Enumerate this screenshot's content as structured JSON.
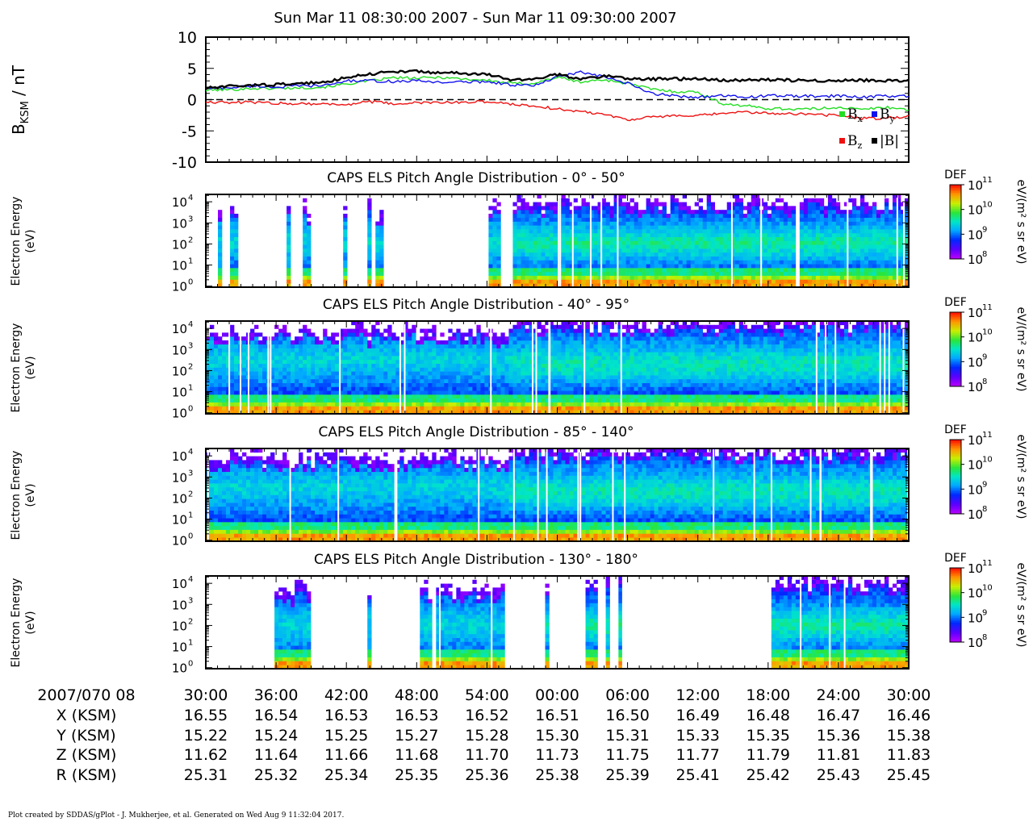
{
  "title": "Sun Mar 11 08:30:00 2007 - Sun Mar 11 09:30:00 2007",
  "footer": "Plot created by SDDAS/gPlot - J. Mukherjee, et al.  Generated on Wed Aug 9 11:32:04 2017.",
  "colors": {
    "bx": "#22dd22",
    "by": "#1111ee",
    "bz": "#ee1111",
    "b_total": "#000000"
  },
  "chart_data": [
    {
      "type": "line",
      "title": "",
      "ylabel": "B",
      "ylabel_sub": "KSM",
      "ylabel_unit": "/ nT",
      "ylim": [
        -10,
        10
      ],
      "yticks": [
        10,
        5,
        0,
        -5,
        -10
      ],
      "zero_line": "dashed",
      "legend": {
        "placement": "bottom-right",
        "entries": [
          {
            "name": "B",
            "sub": "x",
            "color": "#22dd22"
          },
          {
            "name": "B",
            "sub": "y",
            "color": "#1111ee"
          },
          {
            "name": "B",
            "sub": "z",
            "color": "#ee1111"
          },
          {
            "name": "|B|",
            "sub": "",
            "color": "#000000"
          }
        ]
      },
      "x_minutes": [
        0,
        2,
        4,
        6,
        8,
        10,
        12,
        14,
        16,
        18,
        20,
        22,
        24,
        26,
        28,
        30,
        32,
        34,
        36,
        38,
        40,
        42,
        44,
        46,
        48,
        50,
        52,
        54,
        56,
        58,
        60
      ],
      "series": [
        {
          "key": "bx",
          "values": [
            1.5,
            1.6,
            1.8,
            1.8,
            1.9,
            2.0,
            2.5,
            3.0,
            3.5,
            3.4,
            3.6,
            3.3,
            3.1,
            2.6,
            2.6,
            3.6,
            2.8,
            3.2,
            2.6,
            1.7,
            1.3,
            1.2,
            -0.6,
            -1.0,
            -1.4,
            -1.5,
            -1.5,
            -1.2,
            -1.6,
            -1.2,
            -1.6
          ]
        },
        {
          "key": "by",
          "values": [
            1.8,
            1.9,
            2.2,
            2.0,
            2.2,
            2.2,
            3.0,
            3.0,
            2.9,
            3.0,
            2.8,
            2.8,
            2.9,
            2.4,
            2.2,
            3.6,
            4.4,
            3.6,
            2.6,
            1.0,
            0.6,
            0.4,
            0.6,
            0.4,
            0.6,
            0.6,
            0.5,
            0.6,
            0.4,
            0.6,
            0.5
          ]
        },
        {
          "key": "bz",
          "values": [
            -0.3,
            -0.5,
            -0.4,
            -0.6,
            -0.6,
            -0.7,
            -0.8,
            -0.3,
            -0.7,
            -0.5,
            -0.5,
            -0.4,
            -0.3,
            -0.7,
            -1.0,
            -1.5,
            -1.9,
            -2.3,
            -3.2,
            -2.8,
            -2.6,
            -2.6,
            -2.2,
            -2.0,
            -2.2,
            -2.2,
            -2.4,
            -2.5,
            -3.0,
            -3.0,
            -2.6
          ]
        },
        {
          "key": "b_total",
          "values": [
            1.8,
            2.1,
            2.3,
            2.4,
            2.6,
            2.7,
            3.6,
            4.1,
            4.5,
            4.5,
            4.3,
            4.2,
            4.0,
            3.2,
            3.3,
            4.0,
            3.3,
            3.8,
            3.4,
            3.3,
            3.3,
            3.3,
            3.1,
            3.1,
            3.2,
            3.1,
            3.1,
            3.0,
            3.1,
            3.0,
            3.0
          ]
        }
      ]
    },
    {
      "type": "heatmap",
      "title": "CAPS ELS Pitch Angle Distribution - 0° - 50°",
      "ylabel": "Electron Energy",
      "yunit": "(eV)",
      "zlabel": "DEF",
      "zunit": "eV/(m² s sr eV)",
      "zrange_exp": [
        8,
        11
      ],
      "yticks_exp": [
        4,
        3,
        2,
        1,
        0
      ],
      "coverage_minutes": [
        [
          0.9,
          1.4
        ],
        [
          2.2,
          2.8
        ],
        [
          6.9,
          7.4
        ],
        [
          8.4,
          8.8
        ],
        [
          11.7,
          12.2
        ],
        [
          13.8,
          14.2
        ],
        [
          14.6,
          15.0
        ],
        [
          24.1,
          25.3
        ],
        [
          26.1,
          50.3
        ],
        [
          50.6,
          60
        ]
      ],
      "intensity": "moderate"
    },
    {
      "type": "heatmap",
      "title": "CAPS ELS Pitch Angle Distribution - 40° - 95°",
      "ylabel": "Electron Energy",
      "yunit": "(eV)",
      "zlabel": "DEF",
      "zunit": "eV/(m² s sr eV)",
      "zrange_exp": [
        8,
        11
      ],
      "yticks_exp": [
        4,
        3,
        2,
        1,
        0
      ],
      "coverage_minutes": [
        [
          0,
          60
        ]
      ],
      "intensity": "high"
    },
    {
      "type": "heatmap",
      "title": "CAPS ELS Pitch Angle Distribution - 85° - 140°",
      "ylabel": "Electron Energy",
      "yunit": "(eV)",
      "zlabel": "DEF",
      "zunit": "eV/(m² s sr eV)",
      "zrange_exp": [
        8,
        11
      ],
      "yticks_exp": [
        4,
        3,
        2,
        1,
        0
      ],
      "coverage_minutes": [
        [
          0,
          60
        ]
      ],
      "intensity": "high"
    },
    {
      "type": "heatmap",
      "title": "CAPS ELS Pitch Angle Distribution - 130° - 180°",
      "ylabel": "Electron Energy",
      "yunit": "(eV)",
      "zlabel": "DEF",
      "zunit": "eV/(m² s sr eV)",
      "zrange_exp": [
        8,
        11
      ],
      "yticks_exp": [
        4,
        3,
        2,
        1,
        0
      ],
      "coverage_minutes": [
        [
          5.9,
          9.1
        ],
        [
          13.9,
          14.3
        ],
        [
          18.4,
          19.3
        ],
        [
          19.6,
          23.7
        ],
        [
          23.9,
          25.5
        ],
        [
          29.0,
          29.2
        ],
        [
          32.4,
          33.5
        ],
        [
          34.2,
          34.5
        ],
        [
          35.1,
          35.4
        ],
        [
          48.2,
          60
        ]
      ],
      "intensity": "low"
    }
  ],
  "x_axis": {
    "first_label": "2007/070 08",
    "tick_labels": [
      "30:00",
      "36:00",
      "42:00",
      "48:00",
      "54:00",
      "00:00",
      "06:00",
      "12:00",
      "18:00",
      "24:00",
      "30:00"
    ],
    "rows": [
      {
        "label": "X (KSM)",
        "values": [
          "16.55",
          "16.54",
          "16.53",
          "16.53",
          "16.52",
          "16.51",
          "16.50",
          "16.49",
          "16.48",
          "16.47",
          "16.46"
        ]
      },
      {
        "label": "Y (KSM)",
        "values": [
          "15.22",
          "15.24",
          "15.25",
          "15.27",
          "15.28",
          "15.30",
          "15.31",
          "15.33",
          "15.35",
          "15.36",
          "15.38"
        ]
      },
      {
        "label": "Z (KSM)",
        "values": [
          "11.62",
          "11.64",
          "11.66",
          "11.68",
          "11.70",
          "11.73",
          "11.75",
          "11.77",
          "11.79",
          "11.81",
          "11.83"
        ]
      },
      {
        "label": "R (KSM)",
        "values": [
          "25.31",
          "25.32",
          "25.34",
          "25.35",
          "25.36",
          "25.38",
          "25.39",
          "25.41",
          "25.42",
          "25.43",
          "25.45"
        ]
      }
    ]
  }
}
